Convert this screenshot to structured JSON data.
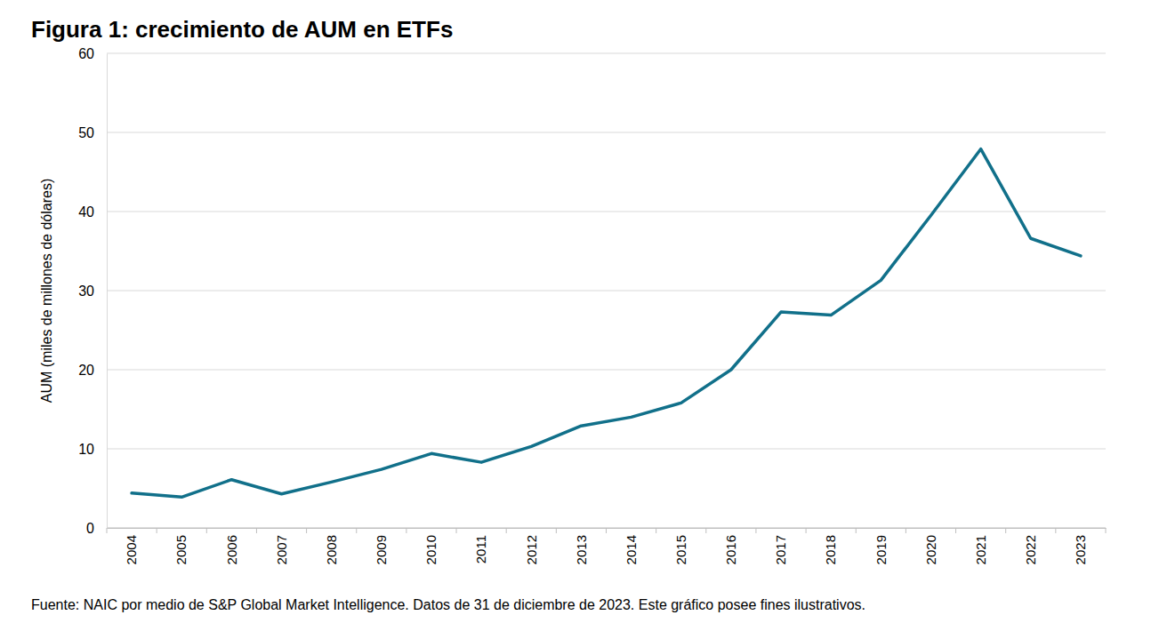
{
  "chart_data": {
    "type": "line",
    "title": "Figura 1: crecimiento de AUM en ETFs",
    "y_label": "AUM (miles de millones de dólares)",
    "footnote": "Fuente: NAIC por medio de S&P Global Market Intelligence. Datos de 31 de diciembre de 2023. Este gráfico posee fines ilustrativos.",
    "categories": [
      "2004",
      "2005",
      "2006",
      "2007",
      "2008",
      "2009",
      "2010",
      "2011",
      "2012",
      "2013",
      "2014",
      "2015",
      "2016",
      "2017",
      "2018",
      "2019",
      "2020",
      "2021",
      "2022",
      "2023"
    ],
    "values": [
      4.4,
      3.9,
      6.1,
      4.3,
      5.8,
      7.4,
      9.4,
      8.3,
      10.3,
      12.9,
      14.0,
      15.8,
      20.0,
      27.3,
      26.9,
      31.3,
      39.5,
      47.9,
      36.6,
      34.4
    ],
    "color": "#11708a",
    "ylim": [
      0,
      60
    ],
    "yticks": [
      0,
      10,
      20,
      30,
      40,
      50,
      60
    ],
    "grid": true
  }
}
